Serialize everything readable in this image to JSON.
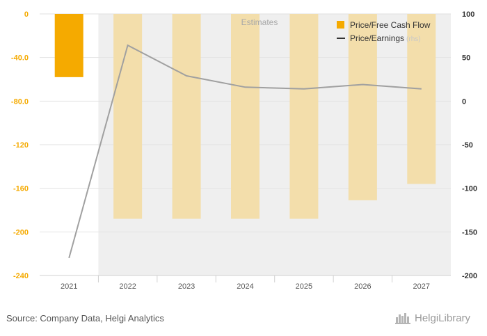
{
  "chart_data": {
    "type": "bar+line",
    "categories": [
      "2021",
      "2022",
      "2023",
      "2024",
      "2025",
      "2026",
      "2027"
    ],
    "estimates_label": "Estimates",
    "estimates_from": "2022",
    "series": [
      {
        "name": "Price/Free Cash Flow",
        "type": "bar",
        "axis": "left",
        "color": "#f5aa00",
        "estimate_color": "#f3deab",
        "values": [
          -58,
          -188,
          -188,
          -188,
          -188,
          -171,
          -156
        ]
      },
      {
        "name": "Price/Earnings",
        "name_suffix": "(rhs)",
        "type": "line",
        "axis": "right",
        "color": "#a0a0a0",
        "legend_color": "#333333",
        "values": [
          -180,
          64,
          29,
          16,
          14,
          19,
          14
        ]
      }
    ],
    "y_left": {
      "ylim": [
        -240,
        0
      ],
      "ticks": [
        0,
        -40,
        -80,
        -120,
        -160,
        -200,
        -240
      ],
      "tick_labels": [
        "0",
        "-40.0",
        "-80.0",
        "-120",
        "-160",
        "-200",
        "-240"
      ],
      "label_color": "#f5aa00"
    },
    "y_right": {
      "ylim": [
        -200,
        100
      ],
      "ticks": [
        100,
        50,
        0,
        -50,
        -100,
        -150,
        -200
      ],
      "tick_labels": [
        "100",
        "50",
        "0",
        "-50",
        "-100",
        "-150",
        "-200"
      ]
    },
    "grid": true,
    "legend_position": "top-right"
  },
  "footer": {
    "source": "Source: Company Data, Helgi Analytics",
    "logo_text": "HelgiLibrary"
  }
}
